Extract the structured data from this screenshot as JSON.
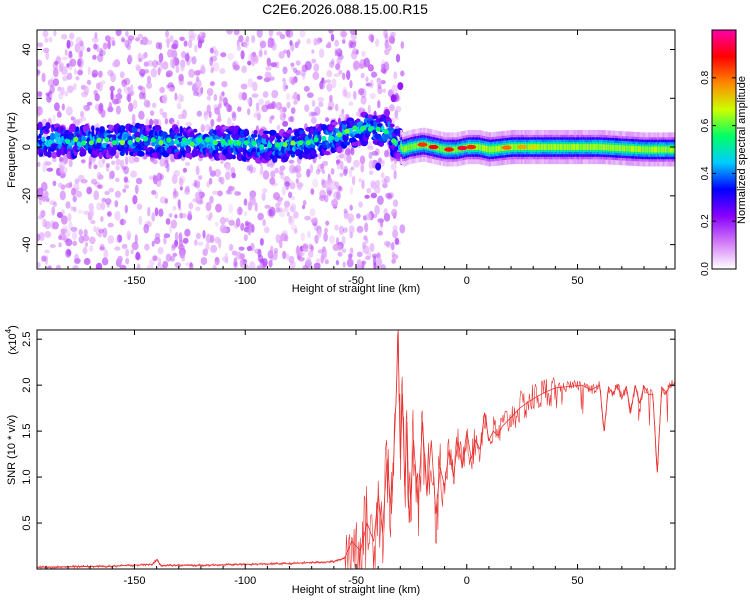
{
  "title": "C2E6.2026.088.15.00.R15",
  "chart_data": [
    {
      "type": "heatmap",
      "title": "C2E6.2026.088.15.00.R15",
      "xlabel": "Height of straight line (km)",
      "ylabel": "Frequency (Hz)",
      "xlim": [
        -194,
        94
      ],
      "ylim": [
        -50,
        48
      ],
      "xticks": [
        -150,
        -100,
        -50,
        0,
        50
      ],
      "yticks": [
        -40,
        -20,
        0,
        20,
        40
      ],
      "colorbar": {
        "label": "Normalized spectral amplitude",
        "range": [
          0.0,
          1.0
        ],
        "ticks": [
          "0.0",
          "0.2",
          "0.4",
          "0.6",
          "0.8"
        ],
        "tick_values": [
          0.0,
          0.2,
          0.4,
          0.6,
          0.8
        ],
        "colors": [
          "#ffffff",
          "#d27bf7",
          "#8800ff",
          "#0000ff",
          "#00ccff",
          "#00ff66",
          "#ccff00",
          "#ff8800",
          "#ff0000",
          "#ff00aa"
        ]
      },
      "ridge": {
        "x": [
          -194,
          -170,
          -150,
          -130,
          -110,
          -100,
          -90,
          -80,
          -70,
          -60,
          -50,
          -42,
          -35,
          -32,
          -29,
          -26,
          -20,
          -15,
          -10,
          -5,
          0,
          5,
          10,
          20,
          40,
          60,
          80,
          94
        ],
        "y": [
          3,
          2,
          3,
          2,
          2,
          1,
          0,
          1,
          2,
          4,
          7,
          8,
          6,
          2,
          -1,
          0,
          1,
          0,
          -1,
          -1,
          0,
          0,
          -1,
          0,
          0,
          0,
          -1,
          -1
        ]
      }
    },
    {
      "type": "line",
      "xlabel": "Height of straight line (km)",
      "ylabel": "SNR (10 * v/v)",
      "y_multiplier": "(x10",
      "y_multiplier_exp": "4",
      "xlim": [
        -194,
        94
      ],
      "ylim": [
        0,
        2.6
      ],
      "xticks": [
        -150,
        -100,
        -50,
        0,
        50
      ],
      "yticks": [
        0.5,
        1.0,
        1.5,
        2.0,
        2.5
      ],
      "ytick_labels": [
        "0.5",
        "1.0",
        "1.5",
        "2.0",
        "2.5"
      ],
      "line_color": "#e8312f",
      "series": [
        {
          "name": "SNR",
          "x": [
            -194,
            -160,
            -142,
            -140,
            -138,
            -120,
            -100,
            -80,
            -60,
            -55,
            -52,
            -48,
            -45,
            -42,
            -40,
            -38,
            -36,
            -34,
            -32,
            -31,
            -30,
            -29,
            -28,
            -27,
            -26,
            -24,
            -22,
            -20,
            -18,
            -16,
            -14,
            -12,
            -10,
            -8,
            -6,
            -4,
            -2,
            0,
            2,
            4,
            6,
            8,
            10,
            12,
            14,
            16,
            18,
            20,
            24,
            28,
            32,
            36,
            40,
            44,
            48,
            52,
            56,
            60,
            62,
            64,
            66,
            68,
            70,
            72,
            74,
            76,
            78,
            80,
            82,
            84,
            86,
            88,
            90,
            92,
            94
          ],
          "y": [
            0.02,
            0.03,
            0.05,
            0.1,
            0.04,
            0.04,
            0.05,
            0.06,
            0.08,
            0.12,
            0.3,
            0.2,
            0.5,
            0.3,
            0.8,
            0.4,
            1.2,
            0.6,
            1.8,
            2.55,
            1.2,
            1.9,
            0.9,
            1.6,
            0.5,
            1.4,
            0.7,
            1.6,
            0.8,
            1.4,
            0.6,
            1.1,
            0.9,
            1.3,
            1.0,
            1.4,
            1.1,
            1.5,
            1.2,
            1.4,
            1.3,
            1.7,
            1.4,
            1.5,
            1.45,
            1.55,
            1.6,
            1.65,
            1.75,
            1.82,
            1.88,
            1.93,
            1.97,
            1.98,
            1.99,
            2.0,
            1.95,
            2.0,
            1.5,
            1.98,
            1.9,
            2.0,
            1.85,
            1.99,
            1.7,
            2.0,
            1.8,
            1.99,
            1.9,
            1.9,
            1.05,
            1.98,
            1.92,
            2.0,
            2.0
          ]
        }
      ]
    }
  ]
}
